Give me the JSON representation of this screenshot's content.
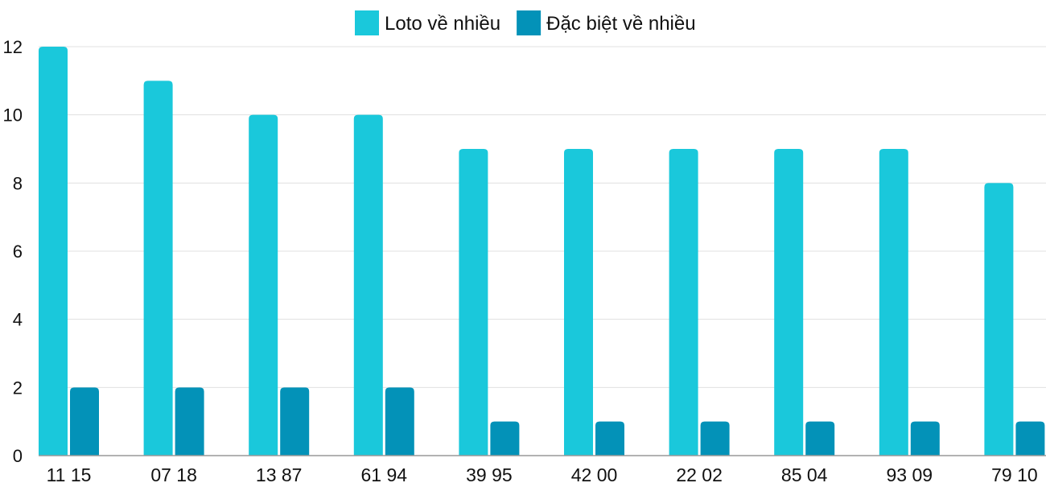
{
  "chart_data": {
    "type": "bar",
    "title": "",
    "xlabel": "",
    "ylabel": "",
    "categories": [
      "11 15",
      "07 18",
      "13 87",
      "61 94",
      "39 95",
      "42 00",
      "22 02",
      "85 04",
      "93 09",
      "79 10"
    ],
    "series": [
      {
        "name": "Loto về nhiều",
        "color": "#1ac8db",
        "values": [
          12,
          11,
          10,
          10,
          9,
          9,
          9,
          9,
          9,
          8
        ]
      },
      {
        "name": "Đặc biệt về nhiều",
        "color": "#0392b8",
        "values": [
          2,
          2,
          2,
          2,
          1,
          1,
          1,
          1,
          1,
          1
        ]
      }
    ],
    "ylim": [
      0,
      12
    ],
    "yticks": [
      0,
      2,
      4,
      6,
      8,
      10,
      12
    ],
    "grid": true,
    "legend_position": "top"
  }
}
